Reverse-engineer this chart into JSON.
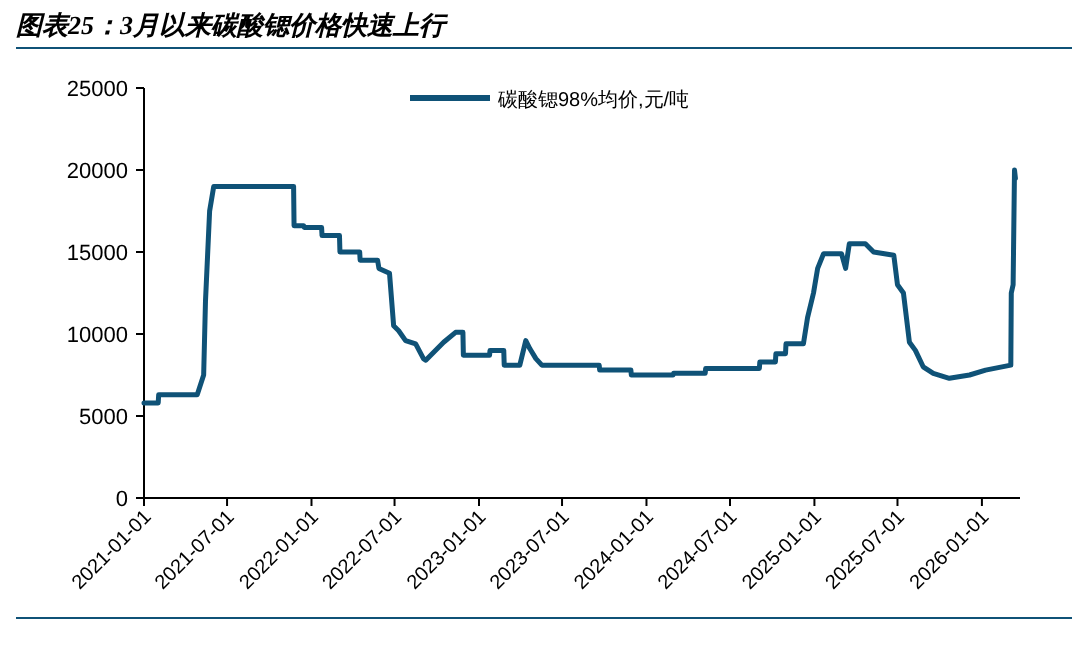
{
  "chart_data": {
    "type": "line",
    "title": "图表25：3月以来碳酸锶价格快速上行",
    "x": [
      "2021-01-01",
      "2021-02-01",
      "2021-02-02",
      "2021-04-27",
      "2021-05-11",
      "2021-05-15",
      "2021-05-24",
      "2021-06-02",
      "2021-11-23",
      "2021-11-24",
      "2021-12-15",
      "2021-12-16",
      "2022-01-23",
      "2022-01-24",
      "2022-03-03",
      "2022-03-04",
      "2022-04-16",
      "2022-04-17",
      "2022-05-25",
      "2022-05-28",
      "2022-06-20",
      "2022-06-29",
      "2022-07-10",
      "2022-07-25",
      "2022-08-16",
      "2022-09-02",
      "2022-09-07",
      "2022-10-16",
      "2022-11-11",
      "2022-11-27",
      "2022-11-28",
      "2023-01-24",
      "2023-01-25",
      "2023-02-24",
      "2023-02-25",
      "2023-03-31",
      "2023-04-13",
      "2023-04-22",
      "2023-05-05",
      "2023-05-18",
      "2023-09-20",
      "2023-09-21",
      "2023-11-28",
      "2023-11-29",
      "2024-02-28",
      "2024-02-29",
      "2024-05-08",
      "2024-05-09",
      "2024-09-03",
      "2024-09-04",
      "2024-10-08",
      "2024-10-09",
      "2024-10-30",
      "2024-10-31",
      "2024-12-08",
      "2024-12-17",
      "2024-12-30",
      "2025-01-08",
      "2025-01-21",
      "2025-03-01",
      "2025-03-10",
      "2025-03-18",
      "2025-04-22",
      "2025-05-10",
      "2025-06-23",
      "2025-07-01",
      "2025-07-14",
      "2025-07-27",
      "2025-08-09",
      "2025-08-26",
      "2025-09-17",
      "2025-10-22",
      "2025-12-05",
      "2026-01-09",
      "2026-03-05",
      "2026-03-06",
      "2026-03-10",
      "2026-03-13",
      "2026-03-15"
    ],
    "series": [
      {
        "name": "碳酸锶98%均价,元/吨",
        "color": "#0f5277",
        "values": [
          5800,
          5800,
          6300,
          6300,
          7500,
          12000,
          17500,
          19000,
          19000,
          16600,
          16600,
          16500,
          16500,
          16000,
          16000,
          15000,
          15000,
          14500,
          14500,
          14000,
          13700,
          10500,
          10200,
          9600,
          9400,
          8500,
          8400,
          9500,
          10100,
          10100,
          8700,
          8700,
          9000,
          9000,
          8100,
          8100,
          9600,
          9100,
          8500,
          8100,
          8100,
          7800,
          7800,
          7500,
          7500,
          7600,
          7600,
          7900,
          7900,
          8300,
          8300,
          8800,
          8800,
          9400,
          9400,
          11000,
          12500,
          14000,
          14900,
          14900,
          14000,
          15500,
          15500,
          15000,
          14800,
          13000,
          12500,
          9500,
          9000,
          8000,
          7600,
          7300,
          7500,
          7800,
          8100,
          12500,
          13000,
          20000,
          19500
        ]
      }
    ],
    "xlim": [
      "2021-01-01",
      "2026-03-25"
    ],
    "xticks": [
      "2021-01-01",
      "2021-07-01",
      "2022-01-01",
      "2022-07-01",
      "2023-01-01",
      "2023-07-01",
      "2024-01-01",
      "2024-07-01",
      "2025-01-01",
      "2025-07-01",
      "2026-01-01"
    ],
    "ylim": [
      0,
      25000
    ],
    "yticks": [
      0,
      5000,
      10000,
      15000,
      20000,
      25000
    ],
    "legend": "top right",
    "grid": false,
    "marker": "none",
    "line_style": "solid"
  }
}
